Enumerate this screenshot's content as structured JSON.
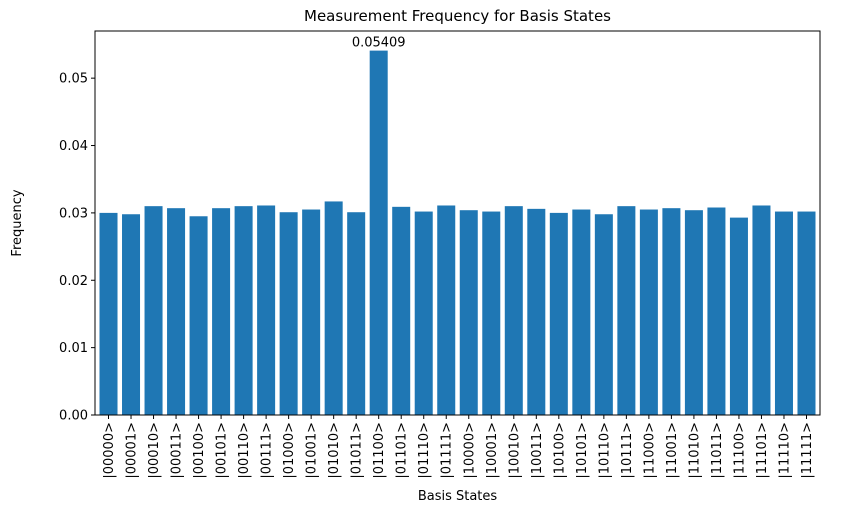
{
  "chart_data": {
    "type": "bar",
    "title": "Measurement Frequency for Basis States",
    "xlabel": "Basis States",
    "ylabel": "Frequency",
    "ylim": [
      0,
      0.057
    ],
    "yticks": [
      0.0,
      0.01,
      0.02,
      0.03,
      0.04,
      0.05
    ],
    "ytick_labels": [
      "0.00",
      "0.01",
      "0.02",
      "0.03",
      "0.04",
      "0.05"
    ],
    "categories": [
      "|00000>",
      "|00001>",
      "|00010>",
      "|00011>",
      "|00100>",
      "|00101>",
      "|00110>",
      "|00111>",
      "|01000>",
      "|01001>",
      "|01010>",
      "|01011>",
      "|01100>",
      "|01101>",
      "|01110>",
      "|01111>",
      "|10000>",
      "|10001>",
      "|10010>",
      "|10011>",
      "|10100>",
      "|10101>",
      "|10110>",
      "|10111>",
      "|11000>",
      "|11001>",
      "|11010>",
      "|11011>",
      "|11100>",
      "|11101>",
      "|11110>",
      "|11111>"
    ],
    "values": [
      0.03,
      0.0298,
      0.031,
      0.0307,
      0.0295,
      0.0307,
      0.031,
      0.0311,
      0.0301,
      0.0305,
      0.0317,
      0.0301,
      0.05409,
      0.0309,
      0.0302,
      0.0311,
      0.0304,
      0.0302,
      0.031,
      0.0306,
      0.03,
      0.0305,
      0.0298,
      0.031,
      0.0305,
      0.0307,
      0.0304,
      0.0308,
      0.0293,
      0.0311,
      0.0302,
      0.0302
    ],
    "annotations": [
      {
        "category": "|01100>",
        "text": "0.05409"
      }
    ],
    "bar_color": "#1f77b4",
    "grid": false,
    "legend": "none"
  }
}
